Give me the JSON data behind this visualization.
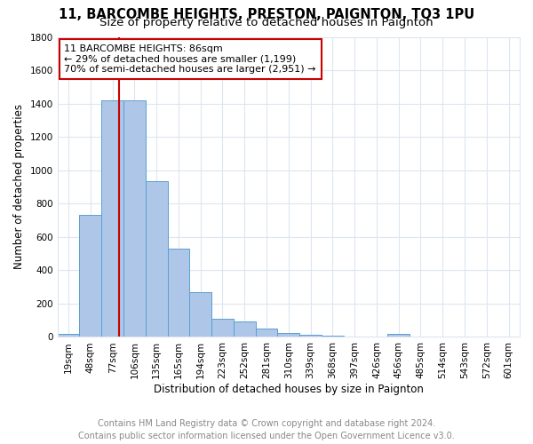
{
  "title": "11, BARCOMBE HEIGHTS, PRESTON, PAIGNTON, TQ3 1PU",
  "subtitle": "Size of property relative to detached houses in Paignton",
  "xlabel": "Distribution of detached houses by size in Paignton",
  "ylabel": "Number of detached properties",
  "footer_line1": "Contains HM Land Registry data © Crown copyright and database right 2024.",
  "footer_line2": "Contains public sector information licensed under the Open Government Licence v3.0.",
  "categories": [
    "19sqm",
    "48sqm",
    "77sqm",
    "106sqm",
    "135sqm",
    "165sqm",
    "194sqm",
    "223sqm",
    "252sqm",
    "281sqm",
    "310sqm",
    "339sqm",
    "368sqm",
    "397sqm",
    "426sqm",
    "456sqm",
    "485sqm",
    "514sqm",
    "543sqm",
    "572sqm",
    "601sqm"
  ],
  "values": [
    20,
    730,
    1420,
    1420,
    935,
    530,
    270,
    110,
    95,
    50,
    25,
    15,
    10,
    5,
    5,
    20,
    3,
    2,
    3,
    2,
    2
  ],
  "bar_color": "#aec6e8",
  "bar_edge_color": "#5a9fd4",
  "vline_color": "#cc0000",
  "vline_x": 2.31,
  "annotation_line1": "11 BARCOMBE HEIGHTS: 86sqm",
  "annotation_line2": "← 29% of detached houses are smaller (1,199)",
  "annotation_line3": "70% of semi-detached houses are larger (2,951) →",
  "ylim": [
    0,
    1800
  ],
  "yticks": [
    0,
    200,
    400,
    600,
    800,
    1000,
    1200,
    1400,
    1600,
    1800
  ],
  "background_color": "#ffffff",
  "grid_color": "#dce6f0",
  "title_fontsize": 10.5,
  "subtitle_fontsize": 9.5,
  "axis_label_fontsize": 8.5,
  "tick_fontsize": 7.5,
  "footer_fontsize": 7,
  "annotation_fontsize": 8
}
